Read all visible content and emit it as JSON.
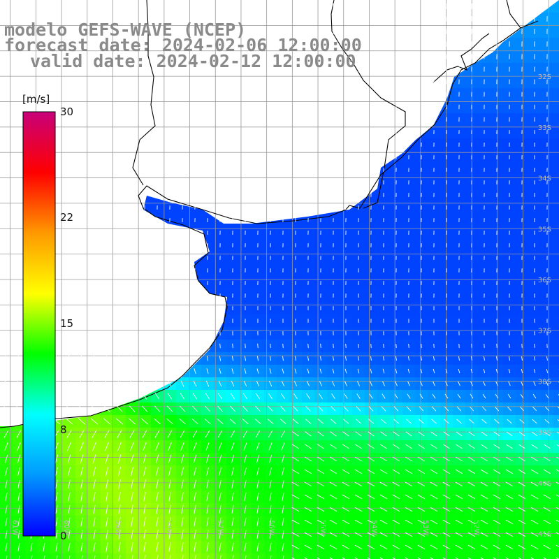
{
  "title": {
    "model": "modelo GEFS-WAVE (NCEP)",
    "forecast_date": "forecast date: 2024-02-06 12:00:00",
    "valid_date": "valid date: 2024-02-12 12:00:00"
  },
  "colorbar": {
    "unit": "[m/s]",
    "tick_labels": [
      "30",
      "22",
      "15",
      "8",
      "0"
    ],
    "tick_values": [
      30,
      22,
      15,
      8,
      0
    ],
    "range": [
      0,
      30
    ],
    "colors": [
      "#0000ff",
      "#0099ff",
      "#00ffff",
      "#00ff00",
      "#ffff00",
      "#ff9900",
      "#ff0000",
      "#c8007a"
    ]
  },
  "map": {
    "lat_labels": [
      "32S",
      "33S",
      "34S",
      "35S",
      "36S",
      "37S",
      "38S",
      "39S",
      "40S",
      "41S"
    ],
    "lon_labels": [
      "61W",
      "60W",
      "59W",
      "58W",
      "57W",
      "56W",
      "55W",
      "54W",
      "53W",
      "52W"
    ],
    "lat_range": [
      -41.5,
      -30.5
    ],
    "lon_range": [
      -61.2,
      -50.3
    ],
    "land_color": "#ffffff",
    "grid_color": "#999999",
    "coast_color": "#000000"
  }
}
